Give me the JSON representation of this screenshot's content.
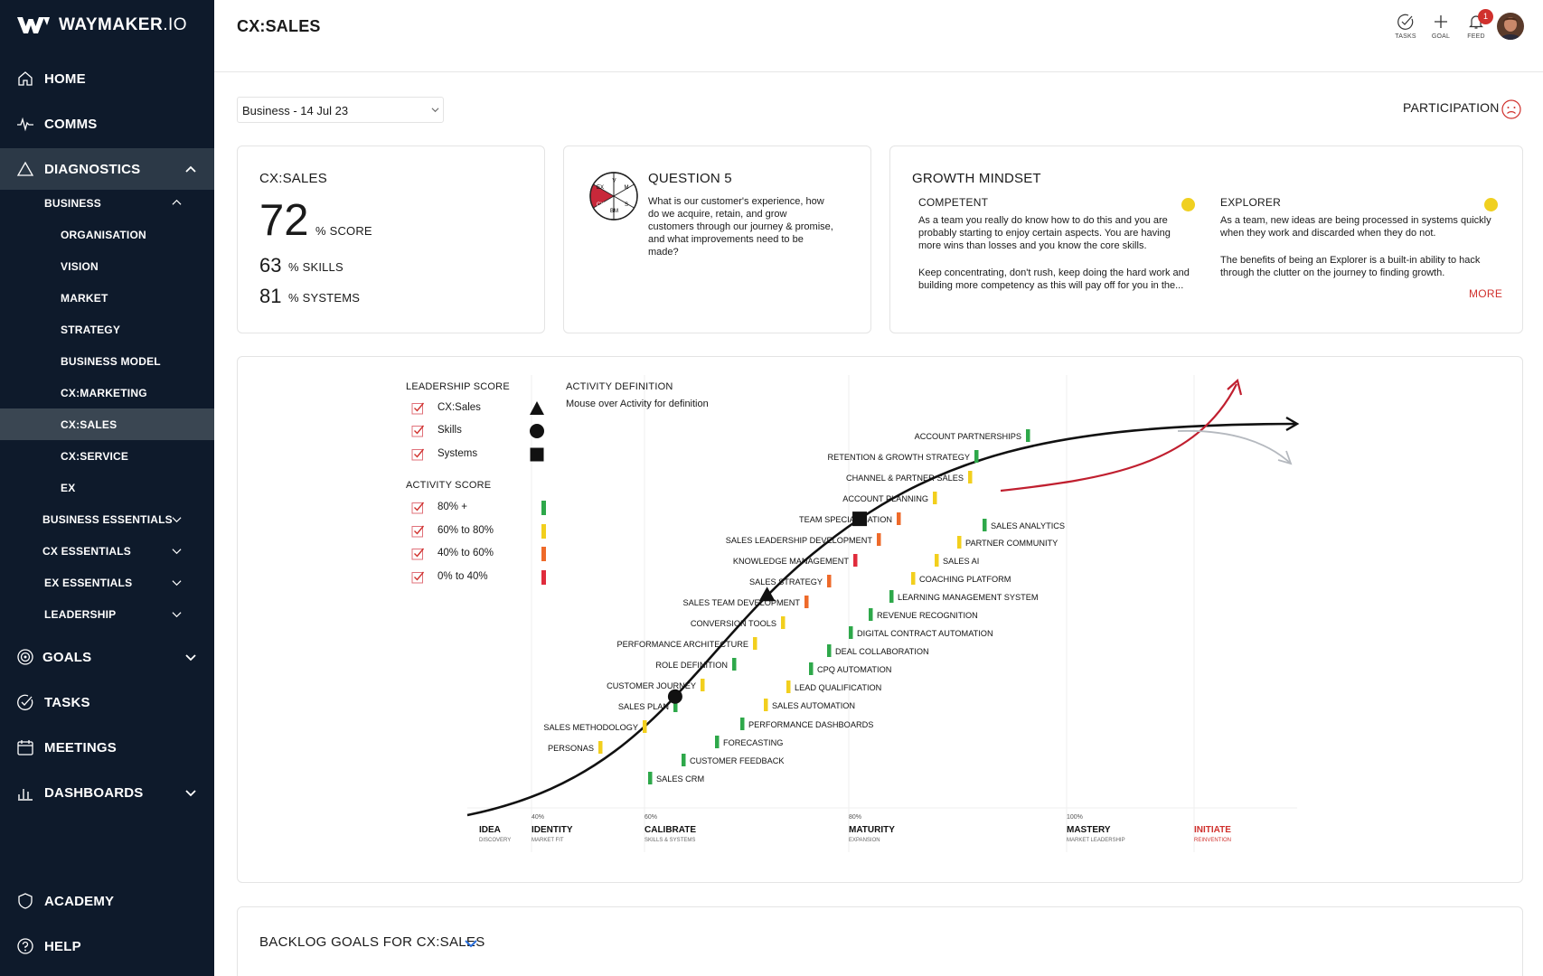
{
  "brand": {
    "name_bold": "WAYMAKER",
    "name_suffix": ".IO"
  },
  "sidebar": {
    "home": "HOME",
    "comms": "COMMS",
    "diagnostics": "DIAGNOSTICS",
    "business": "BUSINESS",
    "business_items": [
      "ORGANISATION",
      "VISION",
      "MARKET",
      "STRATEGY",
      "BUSINESS MODEL",
      "CX:MARKETING",
      "CX:SALES",
      "CX:SERVICE",
      "EX"
    ],
    "groups": [
      "BUSINESS ESSENTIALS",
      "CX ESSENTIALS",
      "EX ESSENTIALS",
      "LEADERSHIP"
    ],
    "goals": "GOALS",
    "tasks": "TASKS",
    "meetings": "MEETINGS",
    "dashboards": "DASHBOARDS",
    "academy": "ACADEMY",
    "help": "HELP"
  },
  "header": {
    "title": "CX:SALES",
    "tasks_label": "TASKS",
    "goal_label": "GOAL",
    "feed_label": "FEED",
    "feed_count": "1"
  },
  "selector": {
    "value": "Business - 14 Jul 23"
  },
  "participation": {
    "label": "PARTICIPATION"
  },
  "score_card": {
    "title": "CX:SALES",
    "score": "72",
    "score_unit": "% SCORE",
    "skills": "63",
    "skills_unit": "% SKILLS",
    "systems": "81",
    "systems_unit": "% SYSTEMS"
  },
  "question_card": {
    "title": "QUESTION 5",
    "text": "What is our customer's experience, how do we acquire, retain, and grow customers through our journey & promise, and what improvements need to be made?",
    "wheel": [
      "V",
      "M",
      "S",
      "BM",
      "CX",
      "EX"
    ]
  },
  "growth_card": {
    "title": "GROWTH MINDSET",
    "col1_title": "COMPETENT",
    "col1_p1": "As a team you really do know how to do this and you are probably starting to enjoy certain aspects. You are having more wins than losses and you know the core skills.",
    "col1_p2": "Keep concentrating, don't rush, keep doing the hard work and building more competency as this will pay off for you in the...",
    "col2_title": "EXPLORER",
    "col2_p1": "As a team, new ideas are being processed in systems quickly when they work and discarded when they do not.",
    "col2_p2": "The benefits of being an Explorer is a built-in ability to hack through the clutter on the journey to finding growth.",
    "more": "MORE",
    "dot_color": "#f0d020"
  },
  "legend": {
    "leadership_title": "LEADERSHIP SCORE",
    "leadership_items": [
      {
        "label": "CX:Sales",
        "marker": "triangle"
      },
      {
        "label": "Skills",
        "marker": "circle"
      },
      {
        "label": "Systems",
        "marker": "square"
      }
    ],
    "activity_title": "ACTIVITY SCORE",
    "activity_items": [
      {
        "label": "80% +",
        "color": "#2ea84a"
      },
      {
        "label": "60% to 80%",
        "color": "#f2cf1d"
      },
      {
        "label": "40% to 60%",
        "color": "#ee6a2a"
      },
      {
        "label": "0% to 40%",
        "color": "#e02c3c"
      }
    ],
    "definition_title": "ACTIVITY DEFINITION",
    "definition_text": "Mouse over Activity for definition"
  },
  "chart_data": {
    "type": "scatter",
    "description_series": "S-curve maturity chart",
    "stages": [
      {
        "pct": "",
        "name": "IDEA",
        "sub": "DISCOVERY"
      },
      {
        "pct": "40%",
        "name": "IDENTITY",
        "sub": "MARKET FIT"
      },
      {
        "pct": "60%",
        "name": "CALIBRATE",
        "sub": "SKILLS & SYSTEMS"
      },
      {
        "pct": "80%",
        "name": "MATURITY",
        "sub": "EXPANSION"
      },
      {
        "pct": "100%",
        "name": "MASTERY",
        "sub": "MARKET LEADERSHIP"
      },
      {
        "pct": "",
        "name": "INITIATE",
        "sub": "REINVENTION",
        "color": "#d0312d"
      }
    ],
    "scores": [
      {
        "name": "CX:Sales",
        "value": 72,
        "marker": "triangle"
      },
      {
        "name": "Skills",
        "value": 63,
        "marker": "circle"
      },
      {
        "name": "Systems",
        "value": 81,
        "marker": "square"
      }
    ],
    "skills_activities": [
      {
        "label": "ACCOUNT PARTNERSHIPS",
        "band": "80% +"
      },
      {
        "label": "RETENTION & GROWTH STRATEGY",
        "band": "80% +"
      },
      {
        "label": "CHANNEL & PARTNER SALES",
        "band": "60% to 80%"
      },
      {
        "label": "ACCOUNT PLANNING",
        "band": "60% to 80%"
      },
      {
        "label": "TEAM SPECIALISATION",
        "band": "40% to 60%"
      },
      {
        "label": "SALES LEADERSHIP DEVELOPMENT",
        "band": "40% to 60%"
      },
      {
        "label": "KNOWLEDGE MANAGEMENT",
        "band": "0% to 40%"
      },
      {
        "label": "SALES STRATEGY",
        "band": "40% to 60%"
      },
      {
        "label": "SALES TEAM DEVELOPMENT",
        "band": "40% to 60%"
      },
      {
        "label": "CONVERSION TOOLS",
        "band": "60% to 80%"
      },
      {
        "label": "PERFORMANCE ARCHITECTURE",
        "band": "60% to 80%"
      },
      {
        "label": "ROLE DEFINITION",
        "band": "80% +"
      },
      {
        "label": "CUSTOMER JOURNEY",
        "band": "60% to 80%"
      },
      {
        "label": "SALES PLAN",
        "band": "80% +"
      },
      {
        "label": "SALES METHODOLOGY",
        "band": "60% to 80%"
      },
      {
        "label": "PERSONAS",
        "band": "60% to 80%"
      }
    ],
    "systems_activities": [
      {
        "label": "SALES ANALYTICS",
        "band": "80% +"
      },
      {
        "label": "PARTNER COMMUNITY",
        "band": "60% to 80%"
      },
      {
        "label": "SALES AI",
        "band": "60% to 80%"
      },
      {
        "label": "COACHING PLATFORM",
        "band": "60% to 80%"
      },
      {
        "label": "LEARNING MANAGEMENT SYSTEM",
        "band": "80% +"
      },
      {
        "label": "REVENUE RECOGNITION",
        "band": "80% +"
      },
      {
        "label": "DIGITAL CONTRACT AUTOMATION",
        "band": "80% +"
      },
      {
        "label": "DEAL COLLABORATION",
        "band": "80% +"
      },
      {
        "label": "CPQ AUTOMATION",
        "band": "80% +"
      },
      {
        "label": "LEAD QUALIFICATION",
        "band": "60% to 80%"
      },
      {
        "label": "SALES AUTOMATION",
        "band": "60% to 80%"
      },
      {
        "label": "PERFORMANCE DASHBOARDS",
        "band": "80% +"
      },
      {
        "label": "FORECASTING",
        "band": "80% +"
      },
      {
        "label": "CUSTOMER FEEDBACK",
        "band": "80% +"
      },
      {
        "label": "SALES CRM",
        "band": "80% +"
      }
    ]
  },
  "backlog": {
    "title": "BACKLOG GOALS FOR CX:SALES"
  }
}
